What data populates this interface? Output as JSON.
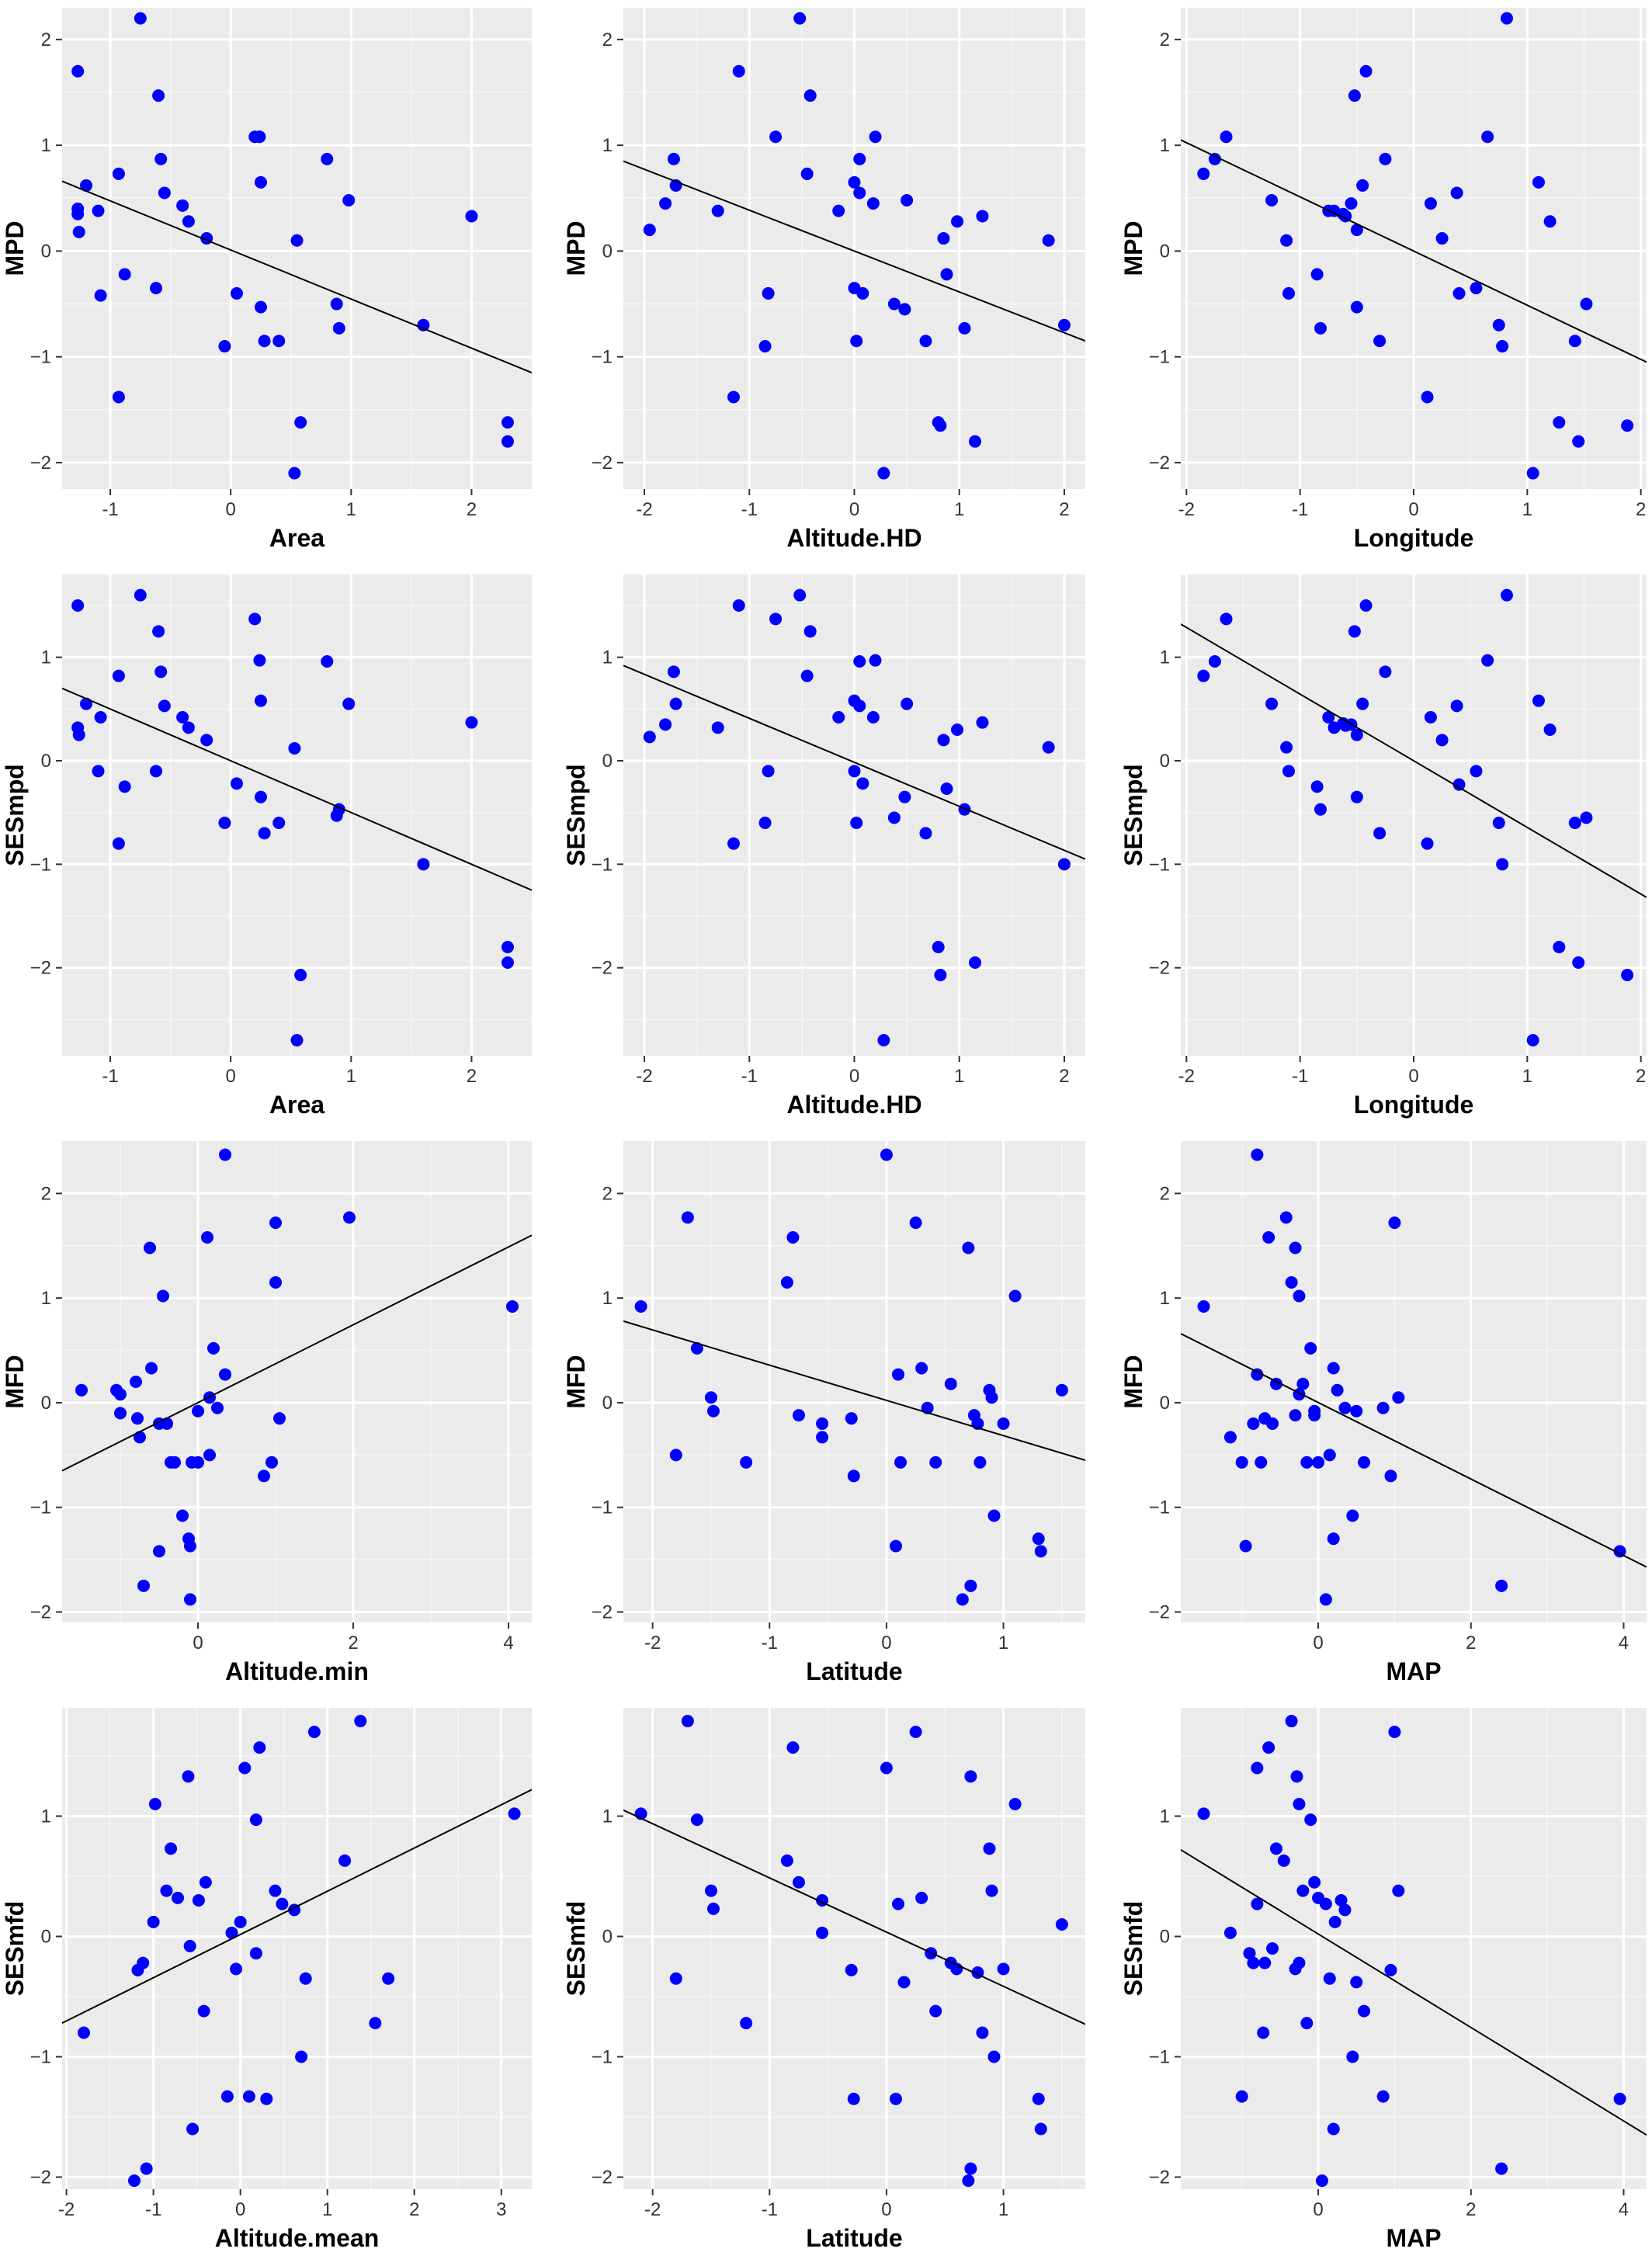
{
  "chart_data": [
    {
      "type": "scatter",
      "xlabel": "Area",
      "ylabel": "MPD",
      "xlim": [
        -1.4,
        2.5
      ],
      "ylim": [
        -2.25,
        2.3
      ],
      "xticks": [
        -1,
        0,
        1,
        2
      ],
      "yticks": [
        -2,
        -1,
        0,
        1,
        2
      ],
      "point_color": "#0000ff",
      "fit_line": {
        "x": [
          -1.4,
          2.5
        ],
        "y": [
          0.66,
          -1.15
        ]
      },
      "x": [
        -1.27,
        -1.27,
        -1.27,
        -1.26,
        -1.2,
        -1.1,
        -1.08,
        -0.93,
        -0.93,
        -0.88,
        -0.75,
        -0.62,
        -0.6,
        -0.58,
        -0.55,
        -0.4,
        -0.35,
        -0.2,
        -0.05,
        0.05,
        0.2,
        0.24,
        0.25,
        0.25,
        0.28,
        0.4,
        0.8,
        0.88,
        0.9,
        0.98,
        1.6,
        2.0,
        2.3,
        2.3,
        0.55,
        0.58,
        0.53
      ],
      "y": [
        1.7,
        0.4,
        0.35,
        0.18,
        0.62,
        0.38,
        -0.42,
        0.73,
        -1.38,
        -0.22,
        2.2,
        -0.35,
        1.47,
        0.87,
        0.55,
        0.43,
        0.28,
        0.12,
        -0.9,
        -0.4,
        1.08,
        1.08,
        0.65,
        -0.53,
        -0.85,
        -0.85,
        0.87,
        -0.5,
        -0.73,
        0.48,
        -0.7,
        0.33,
        -1.62,
        -1.8,
        0.1,
        -1.62,
        -2.1
      ]
    },
    {
      "type": "scatter",
      "xlabel": "Altitude.HD",
      "ylabel": "MPD",
      "xlim": [
        -2.2,
        2.2
      ],
      "ylim": [
        -2.25,
        2.3
      ],
      "xticks": [
        -2,
        -1,
        0,
        1,
        2
      ],
      "yticks": [
        -2,
        -1,
        0,
        1,
        2
      ],
      "point_color": "#0000ff",
      "fit_line": {
        "x": [
          -2.2,
          2.2
        ],
        "y": [
          0.85,
          -0.85
        ]
      },
      "x": [
        -1.95,
        -1.8,
        -1.72,
        -1.7,
        -1.3,
        -1.15,
        -1.1,
        -0.85,
        -0.82,
        -0.75,
        -0.52,
        -0.45,
        -0.42,
        -0.15,
        0.0,
        0.0,
        0.02,
        0.05,
        0.05,
        0.08,
        0.18,
        0.2,
        0.28,
        0.38,
        0.48,
        0.5,
        0.68,
        0.8,
        0.82,
        0.85,
        0.88,
        0.98,
        1.05,
        1.15,
        1.22,
        1.85,
        2.0
      ],
      "y": [
        0.2,
        0.45,
        0.87,
        0.62,
        0.38,
        -1.38,
        1.7,
        -0.9,
        -0.4,
        1.08,
        2.2,
        0.73,
        1.47,
        0.38,
        0.65,
        -0.35,
        -0.85,
        0.55,
        0.87,
        -0.4,
        0.45,
        1.08,
        -2.1,
        -0.5,
        -0.55,
        0.48,
        -0.85,
        -1.62,
        -1.65,
        0.12,
        -0.22,
        0.28,
        -0.73,
        -1.8,
        0.33,
        0.1,
        -0.7
      ]
    },
    {
      "type": "scatter",
      "xlabel": "Longitude",
      "ylabel": "MPD",
      "xlim": [
        -2.05,
        2.05
      ],
      "ylim": [
        -2.25,
        2.3
      ],
      "xticks": [
        -2,
        -1,
        0,
        1,
        2
      ],
      "yticks": [
        -2,
        -1,
        0,
        1,
        2
      ],
      "point_color": "#0000ff",
      "fit_line": {
        "x": [
          -2.05,
          2.05
        ],
        "y": [
          1.05,
          -1.05
        ]
      },
      "x": [
        -1.85,
        -1.75,
        -1.65,
        -1.25,
        -1.12,
        -1.1,
        -0.85,
        -0.82,
        -0.75,
        -0.7,
        -0.62,
        -0.6,
        -0.55,
        -0.52,
        -0.5,
        -0.5,
        -0.45,
        -0.42,
        -0.3,
        -0.25,
        0.12,
        0.15,
        0.25,
        0.38,
        0.4,
        0.55,
        0.65,
        0.75,
        0.78,
        0.82,
        1.05,
        1.1,
        1.2,
        1.28,
        1.42,
        1.45,
        1.52,
        1.88
      ],
      "y": [
        0.73,
        0.87,
        1.08,
        0.48,
        0.1,
        -0.4,
        -0.22,
        -0.73,
        0.38,
        0.38,
        0.35,
        0.33,
        0.45,
        1.47,
        -0.53,
        0.2,
        0.62,
        1.7,
        -0.85,
        0.87,
        -1.38,
        0.45,
        0.12,
        0.55,
        -0.4,
        -0.35,
        1.08,
        -0.7,
        -0.9,
        2.2,
        -2.1,
        0.65,
        0.28,
        -1.62,
        -0.85,
        -1.8,
        -0.5,
        -1.65
      ]
    },
    {
      "type": "scatter",
      "xlabel": "Area",
      "ylabel": "SESmpd",
      "xlim": [
        -1.4,
        2.5
      ],
      "ylim": [
        -2.85,
        1.8
      ],
      "xticks": [
        -1,
        0,
        1,
        2
      ],
      "yticks": [
        -2,
        -1,
        0,
        1
      ],
      "point_color": "#0000ff",
      "fit_line": {
        "x": [
          -1.4,
          2.5
        ],
        "y": [
          0.7,
          -1.25
        ]
      },
      "x": [
        -1.27,
        -1.27,
        -1.26,
        -1.2,
        -1.1,
        -1.08,
        -0.93,
        -0.93,
        -0.88,
        -0.75,
        -0.62,
        -0.6,
        -0.58,
        -0.55,
        -0.4,
        -0.35,
        -0.2,
        -0.05,
        0.05,
        0.2,
        0.24,
        0.25,
        0.25,
        0.28,
        0.4,
        0.53,
        0.55,
        0.58,
        0.8,
        0.88,
        0.9,
        0.98,
        1.6,
        2.0,
        2.3,
        2.3
      ],
      "y": [
        1.5,
        0.32,
        0.25,
        0.55,
        -0.1,
        0.42,
        0.82,
        -0.8,
        -0.25,
        1.6,
        -0.1,
        1.25,
        0.86,
        0.53,
        0.42,
        0.32,
        0.2,
        -0.6,
        -0.22,
        1.37,
        0.97,
        0.58,
        -0.35,
        -0.7,
        -0.6,
        0.12,
        -2.7,
        -2.07,
        0.96,
        -0.53,
        -0.47,
        0.55,
        -1.0,
        0.37,
        -1.8,
        -1.95
      ]
    },
    {
      "type": "scatter",
      "xlabel": "Altitude.HD",
      "ylabel": "SESmpd",
      "xlim": [
        -2.2,
        2.2
      ],
      "ylim": [
        -2.85,
        1.8
      ],
      "xticks": [
        -2,
        -1,
        0,
        1,
        2
      ],
      "yticks": [
        -2,
        -1,
        0,
        1
      ],
      "point_color": "#0000ff",
      "fit_line": {
        "x": [
          -2.2,
          2.2
        ],
        "y": [
          0.92,
          -0.95
        ]
      },
      "x": [
        -1.95,
        -1.8,
        -1.72,
        -1.7,
        -1.3,
        -1.15,
        -1.1,
        -0.85,
        -0.82,
        -0.75,
        -0.52,
        -0.45,
        -0.42,
        -0.15,
        0.0,
        0.0,
        0.02,
        0.05,
        0.05,
        0.08,
        0.18,
        0.2,
        0.28,
        0.38,
        0.48,
        0.5,
        0.68,
        0.8,
        0.82,
        0.85,
        0.88,
        0.98,
        1.05,
        1.15,
        1.22,
        1.85,
        2.0
      ],
      "y": [
        0.23,
        0.35,
        0.86,
        0.55,
        0.32,
        -0.8,
        1.5,
        -0.6,
        -0.1,
        1.37,
        1.6,
        0.82,
        1.25,
        0.42,
        0.58,
        -0.1,
        -0.6,
        0.53,
        0.96,
        -0.22,
        0.42,
        0.97,
        -2.7,
        -0.55,
        -0.35,
        0.55,
        -0.7,
        -1.8,
        -2.07,
        0.2,
        -0.27,
        0.3,
        -0.47,
        -1.95,
        0.37,
        0.13,
        -1.0
      ]
    },
    {
      "type": "scatter",
      "xlabel": "Longitude",
      "ylabel": "SESmpd",
      "xlim": [
        -2.05,
        2.05
      ],
      "ylim": [
        -2.85,
        1.8
      ],
      "xticks": [
        -2,
        -1,
        0,
        1,
        2
      ],
      "yticks": [
        -2,
        -1,
        0,
        1
      ],
      "point_color": "#0000ff",
      "fit_line": {
        "x": [
          -2.05,
          2.05
        ],
        "y": [
          1.32,
          -1.32
        ]
      },
      "x": [
        -1.85,
        -1.75,
        -1.65,
        -1.25,
        -1.12,
        -1.1,
        -0.85,
        -0.82,
        -0.75,
        -0.7,
        -0.62,
        -0.6,
        -0.55,
        -0.52,
        -0.5,
        -0.5,
        -0.45,
        -0.42,
        -0.3,
        -0.25,
        0.12,
        0.15,
        0.25,
        0.38,
        0.4,
        0.55,
        0.65,
        0.75,
        0.78,
        0.82,
        1.05,
        1.1,
        1.2,
        1.28,
        1.42,
        1.45,
        1.52,
        1.88
      ],
      "y": [
        0.82,
        0.96,
        1.37,
        0.55,
        0.13,
        -0.1,
        -0.25,
        -0.47,
        0.42,
        0.32,
        0.36,
        0.34,
        0.35,
        1.25,
        -0.35,
        0.25,
        0.55,
        1.5,
        -0.7,
        0.86,
        -0.8,
        0.42,
        0.2,
        0.53,
        -0.23,
        -0.1,
        0.97,
        -0.6,
        -1.0,
        1.6,
        -2.7,
        0.58,
        0.3,
        -1.8,
        -0.6,
        -1.95,
        -0.55,
        -2.07
      ]
    },
    {
      "type": "scatter",
      "xlabel": "Altitude.min",
      "ylabel": "MFD",
      "xlim": [
        -1.75,
        4.3
      ],
      "ylim": [
        -2.1,
        2.5
      ],
      "xticks": [
        0,
        2,
        4
      ],
      "yticks": [
        -2,
        -1,
        0,
        1,
        2
      ],
      "point_color": "#0000ff",
      "fit_line": {
        "x": [
          -1.75,
          4.3
        ],
        "y": [
          -0.65,
          1.6
        ]
      },
      "x": [
        -1.5,
        -1.05,
        -1.0,
        -1.0,
        -0.8,
        -0.78,
        -0.75,
        -0.7,
        -0.62,
        -0.6,
        -0.5,
        -0.5,
        -0.45,
        -0.4,
        -0.35,
        -0.3,
        -0.2,
        -0.12,
        -0.1,
        -0.1,
        -0.08,
        0.0,
        0.0,
        0.12,
        0.15,
        0.15,
        0.2,
        0.25,
        0.35,
        0.35,
        0.85,
        0.95,
        1.0,
        1.0,
        1.05,
        1.95,
        4.05
      ],
      "y": [
        0.12,
        0.12,
        -0.1,
        0.08,
        0.2,
        -0.15,
        -0.33,
        -1.75,
        1.48,
        0.33,
        -0.2,
        -1.42,
        1.02,
        -0.2,
        -0.57,
        -0.57,
        -1.08,
        -1.3,
        -1.37,
        -1.88,
        -0.57,
        -0.08,
        -0.57,
        1.58,
        0.05,
        -0.5,
        0.52,
        -0.05,
        0.27,
        2.37,
        -0.7,
        -0.57,
        1.72,
        1.15,
        -0.15,
        1.77,
        0.92
      ]
    },
    {
      "type": "scatter",
      "xlabel": "Latitude",
      "ylabel": "MFD",
      "xlim": [
        -2.25,
        1.7
      ],
      "ylim": [
        -2.1,
        2.5
      ],
      "xticks": [
        -2,
        -1,
        0,
        1
      ],
      "yticks": [
        -2,
        -1,
        0,
        1,
        2
      ],
      "point_color": "#0000ff",
      "fit_line": {
        "x": [
          -2.25,
          1.7
        ],
        "y": [
          0.78,
          -0.55
        ]
      },
      "x": [
        -2.1,
        -1.8,
        -1.7,
        -1.62,
        -1.5,
        -1.48,
        -1.2,
        -0.85,
        -0.8,
        -0.75,
        -0.55,
        -0.55,
        -0.3,
        -0.28,
        0.0,
        0.08,
        0.1,
        0.12,
        0.25,
        0.3,
        0.35,
        0.42,
        0.55,
        0.65,
        0.7,
        0.72,
        0.75,
        0.78,
        0.8,
        0.88,
        0.9,
        0.92,
        1.0,
        1.1,
        1.3,
        1.32,
        1.5
      ],
      "y": [
        0.92,
        -0.5,
        1.77,
        0.52,
        0.05,
        -0.08,
        -0.57,
        1.15,
        1.58,
        -0.12,
        -0.2,
        -0.33,
        -0.15,
        -0.7,
        2.37,
        -1.37,
        0.27,
        -0.57,
        1.72,
        0.33,
        -0.05,
        -0.57,
        0.18,
        -1.88,
        1.48,
        -1.75,
        -0.12,
        -0.2,
        -0.57,
        0.12,
        0.05,
        -1.08,
        -0.2,
        1.02,
        -1.3,
        -1.42,
        0.12
      ]
    },
    {
      "type": "scatter",
      "xlabel": "MAP",
      "ylabel": "MFD",
      "xlim": [
        -1.8,
        4.3
      ],
      "ylim": [
        -2.1,
        2.5
      ],
      "xticks": [
        0,
        2,
        4
      ],
      "yticks": [
        -2,
        -1,
        0,
        1,
        2
      ],
      "point_color": "#0000ff",
      "fit_line": {
        "x": [
          -1.8,
          4.3
        ],
        "y": [
          0.66,
          -1.57
        ]
      },
      "x": [
        -1.5,
        -1.15,
        -1.0,
        -0.95,
        -0.85,
        -0.8,
        -0.8,
        -0.75,
        -0.7,
        -0.65,
        -0.6,
        -0.55,
        -0.42,
        -0.35,
        -0.3,
        -0.3,
        -0.25,
        -0.25,
        -0.2,
        -0.15,
        -0.1,
        -0.05,
        -0.05,
        0.0,
        0.1,
        0.15,
        0.2,
        0.2,
        0.25,
        0.35,
        0.45,
        0.5,
        0.6,
        0.85,
        0.95,
        1.0,
        1.05,
        2.4,
        3.95
      ],
      "y": [
        0.92,
        -0.33,
        -0.57,
        -1.37,
        -0.2,
        2.37,
        0.27,
        -0.57,
        -0.15,
        1.58,
        -0.2,
        0.18,
        1.77,
        1.15,
        -0.12,
        1.48,
        0.08,
        1.02,
        0.18,
        -0.57,
        0.52,
        -0.12,
        -0.08,
        -0.57,
        -1.88,
        -0.5,
        -1.3,
        0.33,
        0.12,
        -0.05,
        -1.08,
        -0.08,
        -0.57,
        -0.05,
        -0.7,
        1.72,
        0.05,
        -1.75,
        -1.42
      ]
    },
    {
      "type": "scatter",
      "xlabel": "Altitude.mean",
      "ylabel": "SESmfd",
      "xlim": [
        -2.05,
        3.35
      ],
      "ylim": [
        -2.1,
        1.9
      ],
      "xticks": [
        -2,
        -1,
        0,
        1,
        2,
        3
      ],
      "yticks": [
        -2,
        -1,
        0,
        1
      ],
      "point_color": "#0000ff",
      "fit_line": {
        "x": [
          -2.05,
          3.35
        ],
        "y": [
          -0.72,
          1.22
        ]
      },
      "x": [
        -1.8,
        -1.22,
        -1.18,
        -1.12,
        -1.08,
        -1.0,
        -0.98,
        -0.85,
        -0.8,
        -0.72,
        -0.6,
        -0.58,
        -0.55,
        -0.48,
        -0.42,
        -0.4,
        -0.15,
        -0.1,
        -0.05,
        0.0,
        0.05,
        0.1,
        0.18,
        0.18,
        0.22,
        0.3,
        0.4,
        0.48,
        0.62,
        0.7,
        0.75,
        0.85,
        1.2,
        1.38,
        1.55,
        1.7,
        3.15
      ],
      "y": [
        -0.8,
        -2.03,
        -0.28,
        -0.22,
        -1.93,
        0.12,
        1.1,
        0.38,
        0.73,
        0.32,
        1.33,
        -0.08,
        -1.6,
        0.3,
        -0.62,
        0.45,
        -1.33,
        0.03,
        -0.27,
        0.12,
        1.4,
        -1.33,
        -0.14,
        0.97,
        1.57,
        -1.35,
        0.38,
        0.27,
        0.22,
        -1.0,
        -0.35,
        1.7,
        0.63,
        1.79,
        -0.72,
        -0.35,
        1.02
      ]
    },
    {
      "type": "scatter",
      "xlabel": "Latitude",
      "ylabel": "SESmfd",
      "xlim": [
        -2.25,
        1.7
      ],
      "ylim": [
        -2.1,
        1.9
      ],
      "xticks": [
        -2,
        -1,
        0,
        1
      ],
      "yticks": [
        -2,
        -1,
        0,
        1
      ],
      "point_color": "#0000ff",
      "fit_line": {
        "x": [
          -2.25,
          1.7
        ],
        "y": [
          1.05,
          -0.73
        ]
      },
      "x": [
        -2.1,
        -1.8,
        -1.7,
        -1.62,
        -1.5,
        -1.48,
        -1.2,
        -0.85,
        -0.8,
        -0.75,
        -0.55,
        -0.55,
        -0.3,
        -0.28,
        0.0,
        0.08,
        0.1,
        0.15,
        0.25,
        0.3,
        0.38,
        0.42,
        0.55,
        0.6,
        0.7,
        0.72,
        0.72,
        0.78,
        0.82,
        0.88,
        0.9,
        0.92,
        1.0,
        1.1,
        1.3,
        1.32,
        1.5
      ],
      "y": [
        1.02,
        -0.35,
        1.79,
        0.97,
        0.38,
        0.23,
        -0.72,
        0.63,
        1.57,
        0.45,
        0.03,
        0.3,
        -0.28,
        -1.35,
        1.4,
        -1.35,
        0.27,
        -0.38,
        1.7,
        0.32,
        -0.14,
        -0.62,
        -0.22,
        -0.27,
        -2.03,
        1.33,
        -1.93,
        -0.3,
        -0.8,
        0.73,
        0.38,
        -1.0,
        -0.27,
        1.1,
        -1.35,
        -1.6,
        0.1
      ]
    },
    {
      "type": "scatter",
      "xlabel": "MAP",
      "ylabel": "SESmfd",
      "xlim": [
        -1.8,
        4.3
      ],
      "ylim": [
        -2.1,
        1.9
      ],
      "xticks": [
        0,
        2,
        4
      ],
      "yticks": [
        -2,
        -1,
        0,
        1
      ],
      "point_color": "#0000ff",
      "fit_line": {
        "x": [
          -1.8,
          4.3
        ],
        "y": [
          0.72,
          -1.65
        ]
      },
      "x": [
        -1.5,
        -1.15,
        -1.0,
        -0.9,
        -0.85,
        -0.8,
        -0.8,
        -0.72,
        -0.7,
        -0.65,
        -0.6,
        -0.55,
        -0.45,
        -0.35,
        -0.3,
        -0.28,
        -0.25,
        -0.25,
        -0.2,
        -0.15,
        -0.1,
        -0.05,
        0.0,
        0.05,
        0.1,
        0.15,
        0.2,
        0.22,
        0.3,
        0.35,
        0.45,
        0.5,
        0.6,
        0.85,
        0.95,
        1.0,
        1.05,
        2.4,
        3.95
      ],
      "y": [
        1.02,
        0.03,
        -1.33,
        -0.14,
        -0.22,
        0.27,
        1.4,
        -0.8,
        -0.22,
        1.57,
        -0.1,
        0.73,
        0.63,
        1.79,
        -0.27,
        1.33,
        -0.22,
        1.1,
        0.38,
        -0.72,
        0.97,
        0.45,
        0.32,
        -2.03,
        0.27,
        -0.35,
        -1.6,
        0.12,
        0.3,
        0.22,
        -1.0,
        -0.38,
        -0.62,
        -1.33,
        -0.28,
        1.7,
        0.38,
        -1.93,
        -1.35
      ]
    }
  ]
}
